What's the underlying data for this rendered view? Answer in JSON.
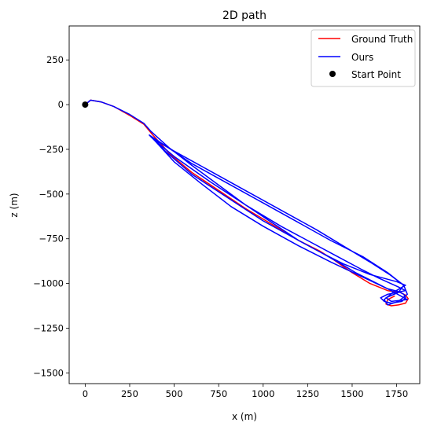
{
  "chart_data": {
    "type": "line",
    "title": "2D path",
    "xlabel": "x (m)",
    "ylabel": "z (m)",
    "xlim": [
      -90,
      1880
    ],
    "ylim": [
      -1560,
      440
    ],
    "xticks": [
      0,
      250,
      500,
      750,
      1000,
      1250,
      1500,
      1750
    ],
    "yticks": [
      250,
      0,
      -250,
      -500,
      -750,
      -1000,
      -1250,
      -1500
    ],
    "xtick_labels": [
      "0",
      "250",
      "500",
      "750",
      "1000",
      "1250",
      "1500",
      "1750"
    ],
    "ytick_labels": [
      "250",
      "0",
      "−250",
      "−500",
      "−750",
      "−1000",
      "−1250",
      "−1500"
    ],
    "grid": false,
    "legend_position": "top-right",
    "series": [
      {
        "name": "Ground Truth",
        "color": "#ff0000",
        "x": [
          0,
          30,
          90,
          160,
          250,
          330,
          380,
          480,
          600,
          750,
          900,
          1050,
          1200,
          1320,
          1400,
          1500,
          1600,
          1700,
          1770,
          1800,
          1815,
          1800,
          1760,
          1720,
          1690,
          1700,
          1740
        ],
        "y": [
          0,
          25,
          15,
          -10,
          -60,
          -110,
          -170,
          -280,
          -380,
          -480,
          -580,
          -670,
          -760,
          -820,
          -870,
          -940,
          -1000,
          -1040,
          -1050,
          -1065,
          -1085,
          -1110,
          -1120,
          -1125,
          -1115,
          -1090,
          -1070
        ]
      },
      {
        "name": "Ours",
        "color": "#0000ff",
        "x": [
          0,
          30,
          90,
          160,
          250,
          330,
          370,
          470,
          600,
          750,
          900,
          1050,
          1200,
          1330,
          1420,
          1520,
          1620,
          1700,
          1760,
          1790,
          1800,
          1780,
          1720,
          1680,
          1660,
          1700,
          1800,
          1760,
          1650,
          1550,
          1400,
          1250,
          1100,
          900,
          700,
          500,
          380,
          500,
          700,
          900,
          1100,
          1300,
          1450,
          1600,
          1710,
          1790,
          1810,
          1760,
          1700,
          1680,
          1730,
          1800,
          1750,
          1600,
          1450,
          1330,
          1200,
          1000,
          800,
          600,
          450,
          360,
          450,
          600,
          800,
          1000,
          1200,
          1380,
          1560,
          1700,
          1790,
          1760,
          1690,
          1720,
          1810,
          1700,
          1550,
          1380,
          1200,
          1000,
          820,
          650,
          500,
          390
        ],
        "y": [
          0,
          25,
          15,
          -10,
          -55,
          -105,
          -150,
          -240,
          -340,
          -450,
          -560,
          -660,
          -760,
          -830,
          -880,
          -940,
          -990,
          -1030,
          -1045,
          -1060,
          -1080,
          -1100,
          -1110,
          -1100,
          -1080,
          -1060,
          -1040,
          -1020,
          -970,
          -920,
          -840,
          -760,
          -680,
          -560,
          -430,
          -290,
          -190,
          -260,
          -370,
          -480,
          -590,
          -700,
          -790,
          -880,
          -950,
          -1010,
          -1060,
          -1100,
          -1120,
          -1090,
          -1050,
          -1010,
          -990,
          -950,
          -890,
          -830,
          -760,
          -650,
          -520,
          -390,
          -260,
          -170,
          -230,
          -330,
          -440,
          -550,
          -660,
          -760,
          -850,
          -940,
          -1010,
          -1050,
          -1080,
          -1100,
          -1090,
          -1030,
          -960,
          -880,
          -790,
          -680,
          -570,
          -440,
          -320,
          -200
        ]
      },
      {
        "name": "Start Point",
        "color": "#000000",
        "marker": "circle",
        "x": [
          0
        ],
        "y": [
          0
        ]
      }
    ]
  }
}
